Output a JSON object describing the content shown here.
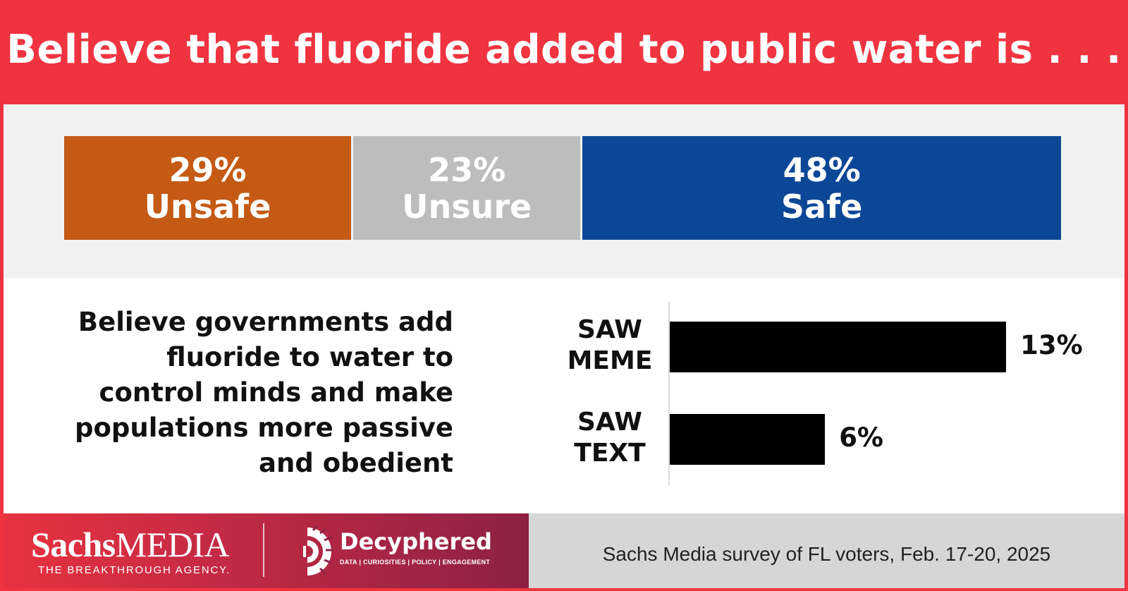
{
  "title": "Believe that fluoride added to public water is . . .",
  "colors": {
    "header_bg": "#ef3440",
    "unsafe": "#c45a13",
    "unsure": "#bdbdbd",
    "safe": "#0c4797",
    "bars": "#000000"
  },
  "chart_data": [
    {
      "type": "bar",
      "orientation": "horizontal-stacked",
      "title": "Believe that fluoride added to public water is . . .",
      "series": [
        {
          "name": "Unsafe",
          "value": 29,
          "label": "29%"
        },
        {
          "name": "Unsure",
          "value": 23,
          "label": "23%"
        },
        {
          "name": "Safe",
          "value": 48,
          "label": "48%"
        }
      ],
      "unit": "%"
    },
    {
      "type": "bar",
      "orientation": "horizontal",
      "title": "Believe governments add fluoride to water to control minds and make populations more passive and obedient",
      "categories": [
        {
          "label_line1": "SAW",
          "label_line2": "MEME"
        },
        {
          "label_line1": "SAW",
          "label_line2": "TEXT"
        }
      ],
      "values": [
        13,
        6
      ],
      "value_labels": [
        "13%",
        "6%"
      ],
      "unit": "%"
    }
  ],
  "statement_lines": [
    "Believe governments add",
    "fluoride to water to",
    "control minds and make",
    "populations more passive",
    "and obedient"
  ],
  "footer": {
    "logo1_bold": "Sachs",
    "logo1_light": "MEDIA",
    "logo1_tagline": "THE BREAKTHROUGH AGENCY.",
    "logo2_name": "Decyphered",
    "logo2_sub": "DATA | CURIOSITIES | POLICY | ENGAGEMENT",
    "source": "Sachs Media survey of FL voters, Feb. 17-20, 2025"
  }
}
